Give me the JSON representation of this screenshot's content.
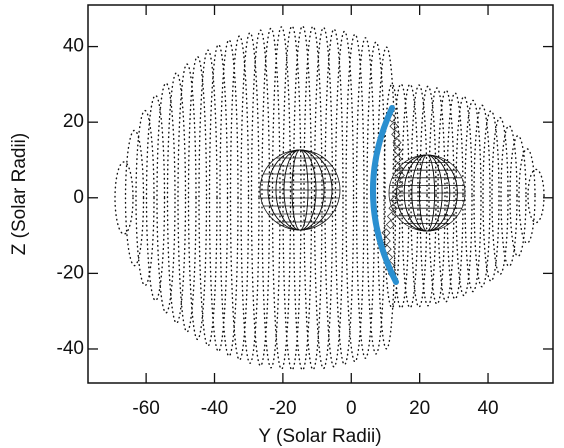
{
  "chart_data": {
    "type": "scatter",
    "x_label": "Y (Solar Radii)",
    "y_label": "Z (Solar Radii)",
    "xlim": [
      -77,
      59
    ],
    "xticks": [
      -60,
      -40,
      -20,
      0,
      20,
      40
    ],
    "ylim": [
      -49,
      51
    ],
    "yticks": [
      -40,
      -20,
      0,
      20,
      40
    ]
  }
}
